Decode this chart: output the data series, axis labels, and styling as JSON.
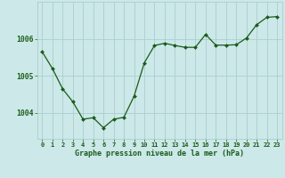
{
  "x": [
    0,
    1,
    2,
    3,
    4,
    5,
    6,
    7,
    8,
    9,
    10,
    11,
    12,
    13,
    14,
    15,
    16,
    17,
    18,
    19,
    20,
    21,
    22,
    23
  ],
  "y": [
    1005.65,
    1005.2,
    1004.65,
    1004.3,
    1003.83,
    1003.87,
    1003.6,
    1003.83,
    1003.88,
    1004.45,
    1005.35,
    1005.82,
    1005.88,
    1005.82,
    1005.77,
    1005.77,
    1006.12,
    1005.83,
    1005.83,
    1005.84,
    1006.02,
    1006.38,
    1006.58,
    1006.6
  ],
  "bg_color": "#cce8e8",
  "line_color": "#1a5c1a",
  "marker_color": "#1a5c1a",
  "grid_color": "#aacece",
  "tick_label_color": "#1a5c1a",
  "xlabel": "Graphe pression niveau de la mer (hPa)",
  "yticks": [
    1004,
    1005,
    1006
  ],
  "ylim": [
    1003.3,
    1007.0
  ],
  "xlim": [
    -0.5,
    23.5
  ]
}
